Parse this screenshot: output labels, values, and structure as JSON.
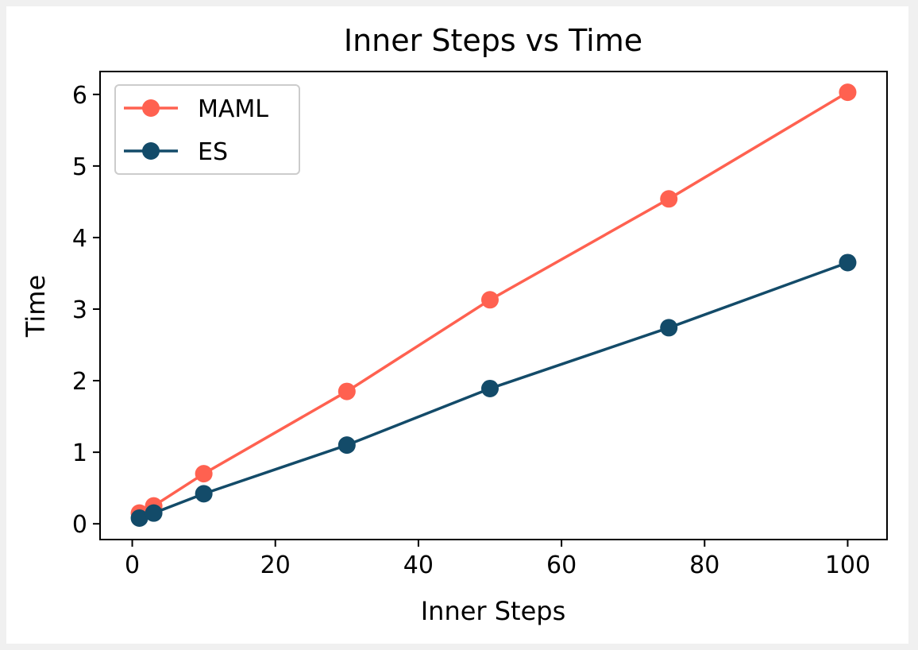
{
  "chart_data": {
    "type": "line",
    "title": "Inner Steps vs Time",
    "xlabel": "Inner Steps",
    "ylabel": "Time",
    "xlim": [
      -4.5,
      105.5
    ],
    "ylim": [
      -0.22,
      6.32
    ],
    "xticks": [
      0,
      20,
      40,
      60,
      80,
      100
    ],
    "yticks": [
      0,
      1,
      2,
      3,
      4,
      5,
      6
    ],
    "grid": false,
    "legend_position": "upper-left",
    "series": [
      {
        "name": "MAML",
        "color": "#ff6150",
        "marker": "circle",
        "x": [
          1,
          3,
          10,
          30,
          50,
          75,
          100
        ],
        "y": [
          0.15,
          0.25,
          0.7,
          1.85,
          3.13,
          4.54,
          6.03
        ]
      },
      {
        "name": "ES",
        "color": "#134b69",
        "marker": "circle",
        "x": [
          1,
          3,
          10,
          30,
          50,
          75,
          100
        ],
        "y": [
          0.08,
          0.15,
          0.42,
          1.1,
          1.89,
          2.74,
          3.65
        ]
      }
    ]
  }
}
